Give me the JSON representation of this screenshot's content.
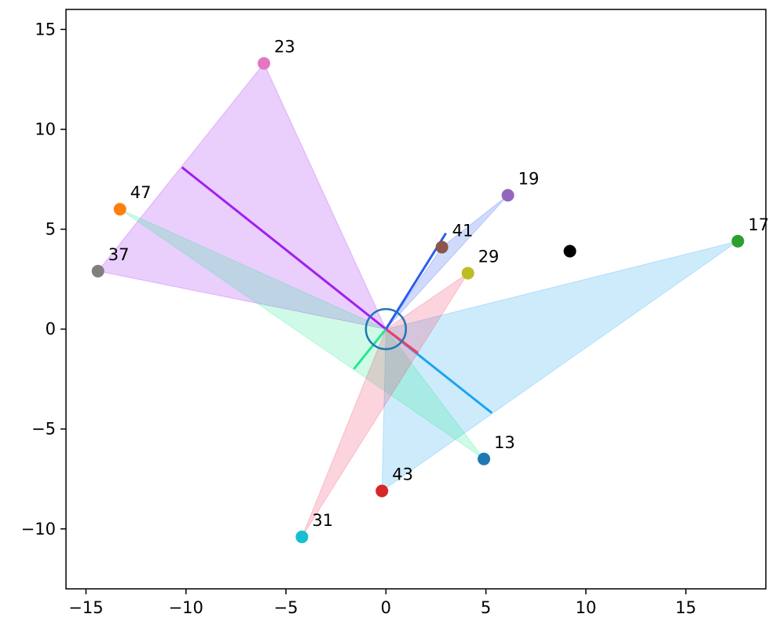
{
  "chart_data": {
    "type": "scatter",
    "title": "",
    "xlabel": "",
    "ylabel": "",
    "xlim": [
      -16,
      19
    ],
    "ylim": [
      -13,
      16
    ],
    "x_ticks": [
      -15,
      -10,
      -5,
      0,
      5,
      10,
      15
    ],
    "y_ticks": [
      -10,
      -5,
      0,
      5,
      10,
      15
    ],
    "x_tick_labels": [
      "−15",
      "−10",
      "−5",
      "0",
      "5",
      "10",
      "15"
    ],
    "y_tick_labels": [
      "−10",
      "−5",
      "0",
      "5",
      "10",
      "15"
    ],
    "grid": false,
    "center_circle": {
      "x": 0,
      "y": 0,
      "radius": 1.0,
      "color": "#1f77b4"
    },
    "points": [
      {
        "label": "13",
        "x": 4.9,
        "y": -6.5,
        "color": "#1f77b4"
      },
      {
        "label": "47",
        "x": -13.3,
        "y": 6.0,
        "color": "#ff7f0e"
      },
      {
        "label": "17",
        "x": 17.6,
        "y": 4.4,
        "color": "#2ca02c"
      },
      {
        "label": "43",
        "x": -0.2,
        "y": -8.1,
        "color": "#d62728"
      },
      {
        "label": "19",
        "x": 6.1,
        "y": 6.7,
        "color": "#9467bd"
      },
      {
        "label": "41",
        "x": 2.8,
        "y": 4.1,
        "color": "#8c564b"
      },
      {
        "label": "23",
        "x": -6.1,
        "y": 13.3,
        "color": "#e377c2"
      },
      {
        "label": "37",
        "x": -14.4,
        "y": 2.9,
        "color": "#7f7f7f"
      },
      {
        "label": "29",
        "x": 4.1,
        "y": 2.8,
        "color": "#bcbd22"
      },
      {
        "label": "31",
        "x": -4.2,
        "y": -10.4,
        "color": "#17becf"
      },
      {
        "label": "",
        "x": 9.2,
        "y": 3.9,
        "color": "#000000"
      }
    ],
    "triangles": [
      {
        "vertices": [
          [
            0,
            0
          ],
          [
            -6.1,
            13.3
          ],
          [
            -14.4,
            2.9
          ]
        ],
        "color": "#a020f0",
        "line": [
          [
            0,
            0
          ],
          [
            -10.2,
            8.1
          ]
        ]
      },
      {
        "vertices": [
          [
            0,
            0
          ],
          [
            17.6,
            4.4
          ],
          [
            -0.2,
            -8.1
          ]
        ],
        "color": "#1ea4f0",
        "line": [
          [
            0,
            0
          ],
          [
            5.3,
            -4.2
          ]
        ]
      },
      {
        "vertices": [
          [
            0,
            0
          ],
          [
            -13.3,
            6.0
          ],
          [
            4.9,
            -6.5
          ]
        ],
        "color": "#24e890",
        "line": [
          [
            0,
            0
          ],
          [
            -1.6,
            -2.0
          ]
        ]
      },
      {
        "vertices": [
          [
            0,
            0
          ],
          [
            4.1,
            2.8
          ],
          [
            -4.2,
            -10.4
          ]
        ],
        "color": "#f23c64",
        "line": [
          [
            0,
            0
          ],
          [
            1.6,
            -1.2
          ]
        ]
      },
      {
        "vertices": [
          [
            0,
            0
          ],
          [
            6.1,
            6.7
          ],
          [
            2.8,
            4.1
          ]
        ],
        "color": "#2a5cf0",
        "line": [
          [
            0,
            0
          ],
          [
            3.0,
            4.8
          ]
        ]
      }
    ]
  }
}
